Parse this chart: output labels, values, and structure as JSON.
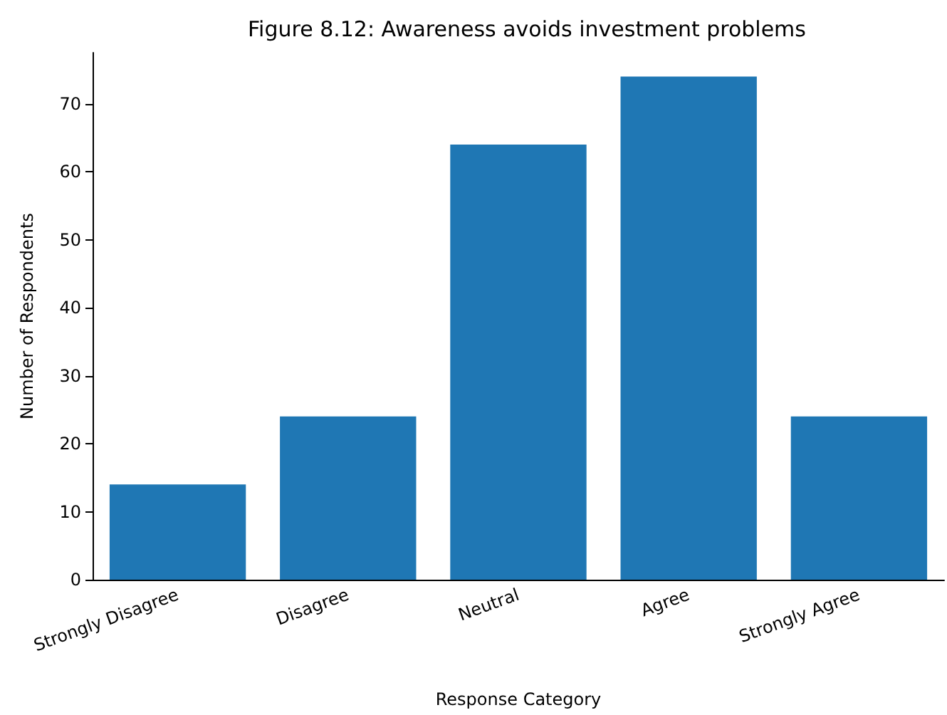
{
  "chart_data": {
    "type": "bar",
    "title": "Figure 8.12: Awareness avoids investment problems",
    "xlabel": "Response Category",
    "ylabel": "Number of Respondents",
    "categories": [
      "Strongly Disagree",
      "Disagree",
      "Neutral",
      "Agree",
      "Strongly Agree"
    ],
    "values": [
      14,
      24,
      64,
      74,
      24
    ],
    "color": "#1f77b4",
    "ylim": [
      0,
      77.5
    ],
    "yticks": [
      0,
      10,
      20,
      30,
      40,
      50,
      60,
      70
    ]
  }
}
